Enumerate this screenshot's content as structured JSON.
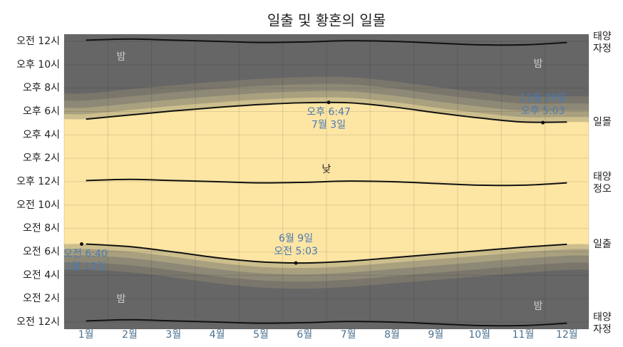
{
  "chart_data": {
    "type": "daylight",
    "title": "일출 및 황혼의 일몰",
    "categories": [
      "1월",
      "2월",
      "3월",
      "4월",
      "5월",
      "6월",
      "7월",
      "8월",
      "9월",
      "10월",
      "11월",
      "12월"
    ],
    "series": [
      {
        "name": "태양 자정",
        "color": "#111111",
        "values": [
          24.1,
          24.2,
          24.1,
          24.0,
          23.9,
          23.95,
          24.05,
          24.0,
          23.85,
          23.7,
          23.7,
          23.9
        ]
      },
      {
        "name": "일몰",
        "color": "#111111",
        "values": [
          17.35,
          17.7,
          18.05,
          18.35,
          18.6,
          18.75,
          18.75,
          18.4,
          17.9,
          17.45,
          17.1,
          17.1
        ]
      },
      {
        "name": "태양 정오",
        "color": "#111111",
        "values": [
          12.1,
          12.2,
          12.1,
          12.0,
          11.9,
          11.95,
          12.05,
          12.0,
          11.85,
          11.7,
          11.7,
          11.9
        ]
      },
      {
        "name": "일출",
        "color": "#111111",
        "values": [
          6.67,
          6.45,
          6.0,
          5.5,
          5.15,
          5.05,
          5.2,
          5.5,
          5.8,
          6.1,
          6.4,
          6.65
        ]
      },
      {
        "name": "태양 자정",
        "color": "#111111",
        "values": [
          0.1,
          0.2,
          0.1,
          0.0,
          -0.1,
          -0.05,
          0.05,
          0.0,
          -0.15,
          -0.3,
          -0.3,
          -0.1
        ]
      }
    ],
    "ylim": [
      0,
      24
    ],
    "yticks": [
      {
        "value": 0,
        "label": "오전 12시"
      },
      {
        "value": 2,
        "label": "오전 2시"
      },
      {
        "value": 4,
        "label": "오전 4시"
      },
      {
        "value": 6,
        "label": "오전 6시"
      },
      {
        "value": 8,
        "label": "오전 8시"
      },
      {
        "value": 10,
        "label": "오전 10시"
      },
      {
        "value": 12,
        "label": "오후 12시"
      },
      {
        "value": 14,
        "label": "오후 2시"
      },
      {
        "value": 16,
        "label": "오후 4시"
      },
      {
        "value": 18,
        "label": "오후 6시"
      },
      {
        "value": 20,
        "label": "오후 8시"
      },
      {
        "value": 22,
        "label": "오후 10시"
      },
      {
        "value": 24,
        "label": "오전 12시"
      }
    ],
    "annotations": [
      {
        "x": 6.05,
        "y": 18.78,
        "lines": [
          "오후 6:47",
          "7월 3일"
        ]
      },
      {
        "x": 10.95,
        "y": 17.05,
        "lines": [
          "11월 29일",
          "오후 5:03"
        ]
      },
      {
        "x": 5.3,
        "y": 5.05,
        "lines": [
          "6월 9일",
          "오전 5:03"
        ]
      },
      {
        "x": 0.4,
        "y": 6.67,
        "lines": [
          "오전 6:40",
          "1월 13일"
        ]
      }
    ],
    "night_label": "밤",
    "day_label": "낮",
    "night_color": "#666666",
    "day_color": "#fde5a3",
    "grid": true
  }
}
